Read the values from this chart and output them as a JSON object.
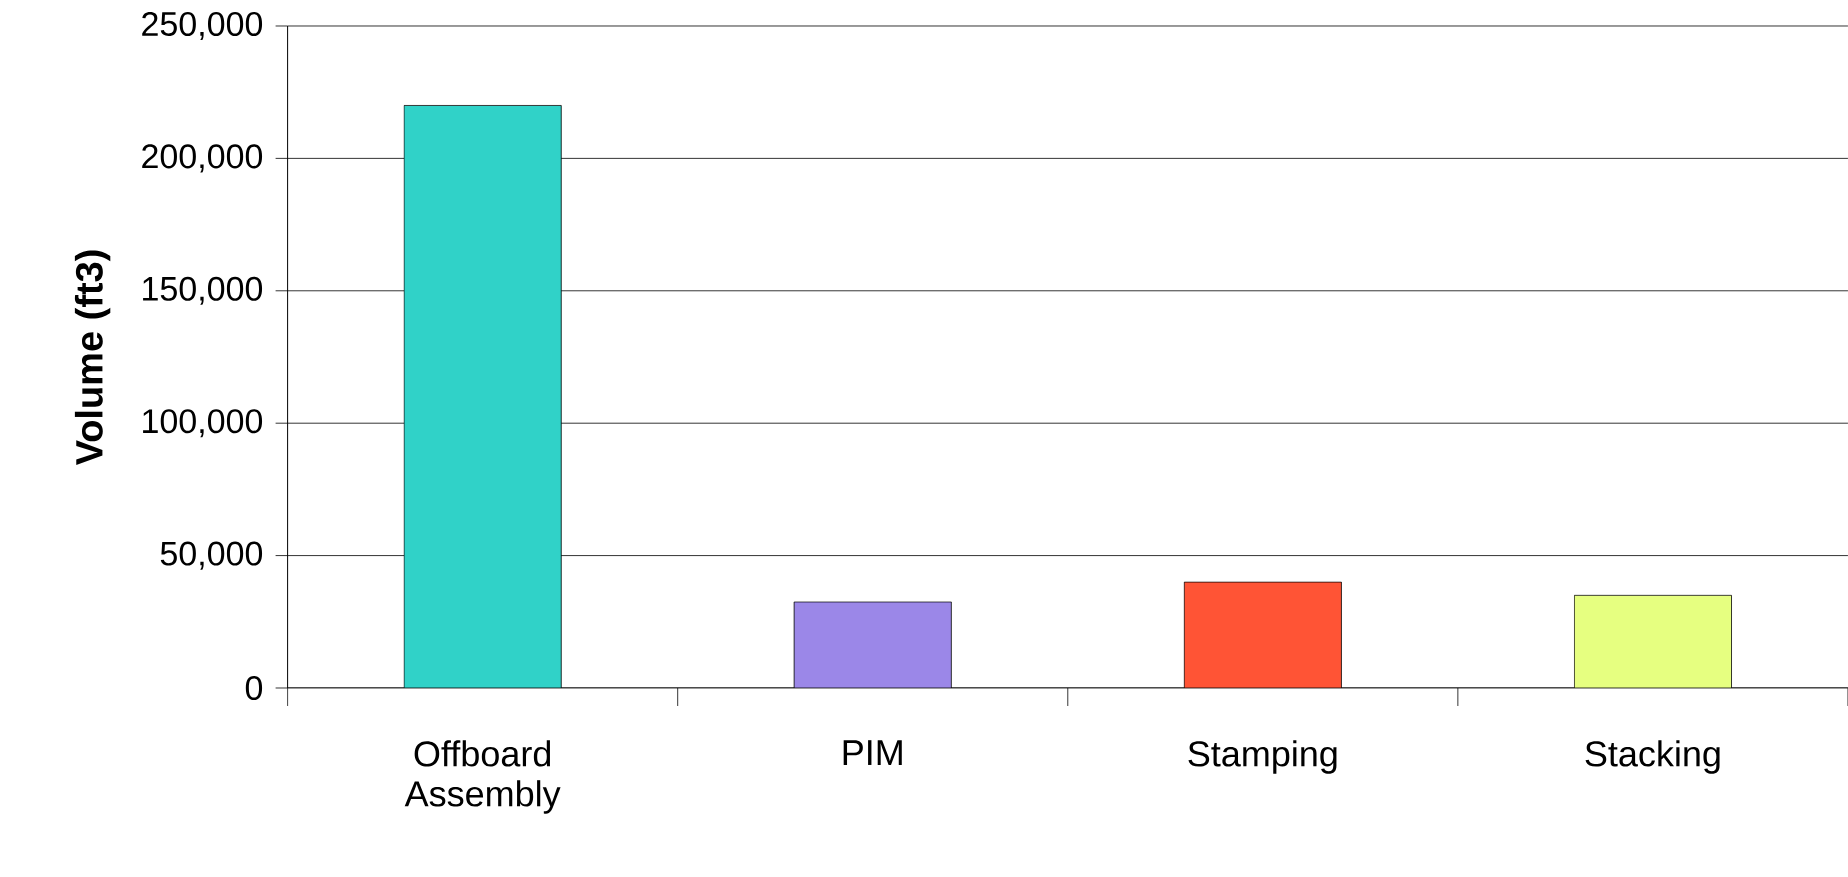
{
  "chart_data": {
    "type": "bar",
    "ylabel": "Volume (ft3)",
    "categories": [
      "Offboard Assembly",
      "PIM",
      "Stamping",
      "Stacking"
    ],
    "values": [
      220000,
      32500,
      40000,
      35000
    ],
    "colors": [
      "#30d2c8",
      "#9b87e8",
      "#ff5435",
      "#e6ff80"
    ],
    "ylim": [
      0,
      250000
    ],
    "yticks": [
      {
        "value": 0,
        "label": "0"
      },
      {
        "value": 50000,
        "label": "50,000"
      },
      {
        "value": 100000,
        "label": "100,000"
      },
      {
        "value": 150000,
        "label": "150,000"
      },
      {
        "value": 200000,
        "label": "200,000"
      },
      {
        "value": 250000,
        "label": "250,000"
      }
    ],
    "grid": "y"
  }
}
